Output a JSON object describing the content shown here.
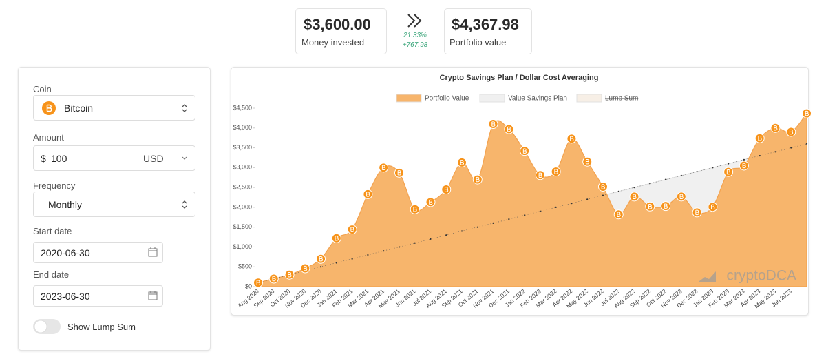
{
  "summary": {
    "invested": "$3,600.00",
    "invested_label": "Money invested",
    "return_pct": "21.33%",
    "return_abs": "+767.98",
    "portfolio": "$4,367.98",
    "portfolio_label": "Portfolio value"
  },
  "form": {
    "coin_label": "Coin",
    "coin": "Bitcoin",
    "amount_label": "Amount",
    "currency_symbol": "$",
    "amount": "100",
    "currency": "USD",
    "frequency_label": "Frequency",
    "frequency": "Monthly",
    "start_label": "Start date",
    "start": "2020-06-30",
    "end_label": "End date",
    "end": "2023-06-30",
    "toggle_label": "Show Lump Sum",
    "show_lump_sum": false
  },
  "chart_data": {
    "type": "area",
    "title": "Crypto Savings Plan / Dollar Cost Averaging",
    "watermark": "cryptoDCA",
    "categories": [
      "Aug 2020",
      "Sep 2020",
      "Oct 2020",
      "Nov 2020",
      "Dec 2020",
      "Jan 2021",
      "Feb 2021",
      "Mar 2021",
      "Apr 2021",
      "May 2021",
      "Jun 2021",
      "Jul 2021",
      "Aug 2021",
      "Sep 2021",
      "Oct 2021",
      "Nov 2021",
      "Dec 2021",
      "Jan 2022",
      "Feb 2022",
      "Mar 2022",
      "Apr 2022",
      "May 2022",
      "Jun 2022",
      "Jul 2022",
      "Aug 2022",
      "Sep 2022",
      "Oct 2022",
      "Nov 2022",
      "Dec 2022",
      "Jan 2023",
      "Feb 2023",
      "Mar 2023",
      "Apr 2023",
      "May 2023",
      "Jun 2023",
      null
    ],
    "series": [
      {
        "name": "Portfolio Value",
        "color": "#f7b56c",
        "values": [
          100,
          200,
          300,
          460,
          700,
          1220,
          1440,
          2330,
          3000,
          2870,
          1950,
          2130,
          2450,
          3130,
          2700,
          4100,
          3970,
          3420,
          2810,
          2900,
          3730,
          3150,
          2520,
          1820,
          2270,
          2020,
          2030,
          2270,
          1870,
          2010,
          2890,
          3050,
          3740,
          4000,
          3900,
          4367.98
        ]
      },
      {
        "name": "Value Savings Plan",
        "color": "#f0f0f0",
        "values": [
          100,
          200,
          300,
          400,
          500,
          600,
          700,
          800,
          900,
          1000,
          1100,
          1200,
          1300,
          1400,
          1500,
          1600,
          1700,
          1800,
          1900,
          2000,
          2100,
          2200,
          2300,
          2400,
          2500,
          2600,
          2700,
          2800,
          2900,
          3000,
          3100,
          3200,
          3300,
          3400,
          3500,
          3600
        ]
      },
      {
        "name": "Lump Sum",
        "color": "#f7efe6",
        "hidden": true
      }
    ],
    "ylim": [
      0,
      4500
    ],
    "yticks": [
      {
        "value": 0,
        "label": "$0"
      },
      {
        "value": 500,
        "label": "$500"
      },
      {
        "value": 1000,
        "label": "$1,000"
      },
      {
        "value": 1500,
        "label": "$1,500"
      },
      {
        "value": 2000,
        "label": "$2,000"
      },
      {
        "value": 2500,
        "label": "$2,500"
      },
      {
        "value": 3000,
        "label": "$3,000"
      },
      {
        "value": 3500,
        "label": "$3,500"
      },
      {
        "value": 4000,
        "label": "$4,000"
      },
      {
        "value": 4500,
        "label": "$4,500"
      }
    ],
    "grid": false
  }
}
